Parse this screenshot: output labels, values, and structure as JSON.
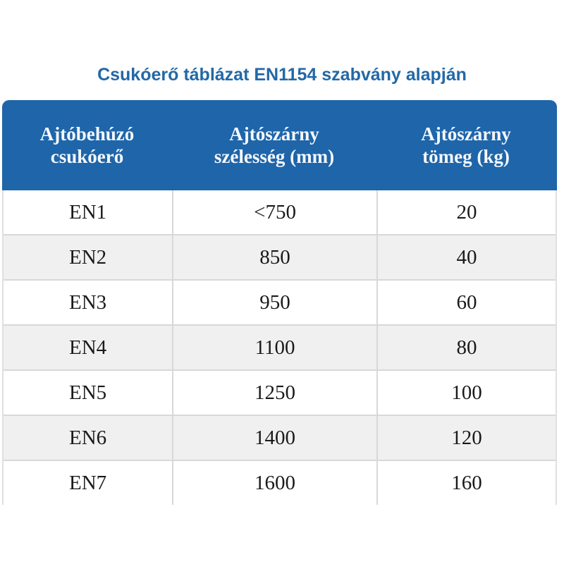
{
  "title": "Csukóerő táblázat EN1154 szabvány alapján",
  "colors": {
    "header_bg": "#1f65a9",
    "title": "#2368a6",
    "alt_row": "#f0f0f0"
  },
  "table": {
    "headers": [
      "Ajtóbehúzó\ncsukóerő",
      "Ajtószárny\nszélesség (mm)",
      "Ajtószárny\ntömeg (kg)"
    ],
    "rows": [
      [
        "EN1",
        "<750",
        "20"
      ],
      [
        "EN2",
        "850",
        "40"
      ],
      [
        "EN3",
        "950",
        "60"
      ],
      [
        "EN4",
        "1100",
        "80"
      ],
      [
        "EN5",
        "1250",
        "100"
      ],
      [
        "EN6",
        "1400",
        "120"
      ],
      [
        "EN7",
        "1600",
        "160"
      ]
    ]
  }
}
